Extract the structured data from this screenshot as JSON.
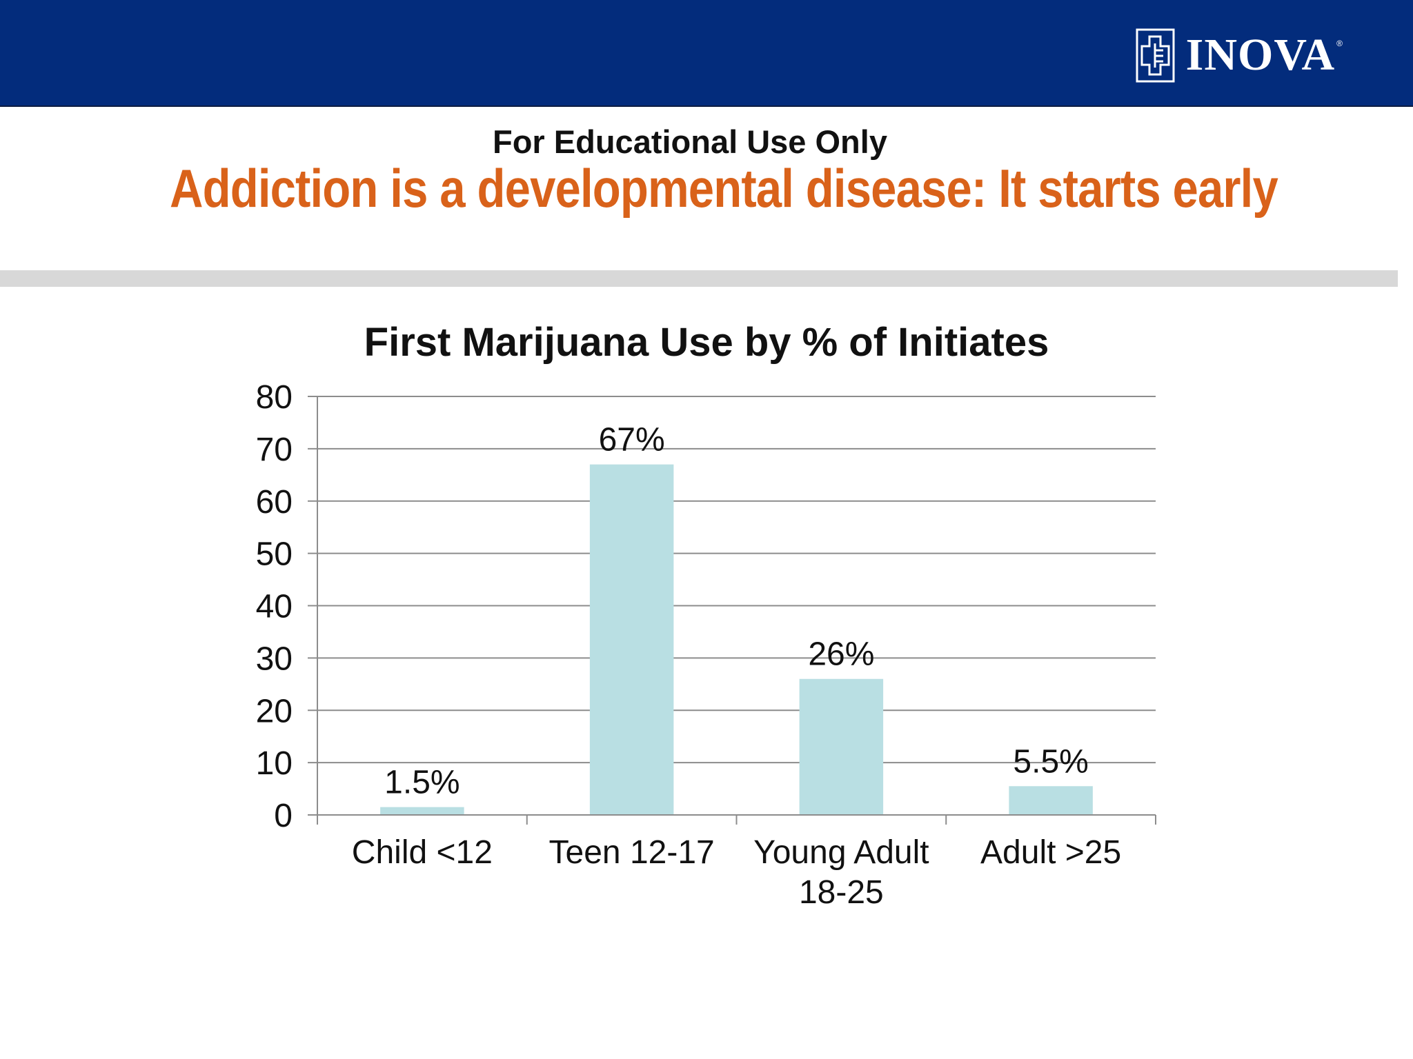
{
  "header": {
    "logo_text": "INOVA",
    "logo_mark": "inova-cross-logo-icon",
    "logo_reg": "®",
    "background_color": "#032c7c"
  },
  "slide": {
    "educational_note": "For Educational Use Only",
    "title": "Addiction is a developmental disease: It starts early",
    "title_color": "#d9621a"
  },
  "chart_data": {
    "type": "bar",
    "title": "First Marijuana Use by % of Initiates",
    "categories": [
      [
        "Child <12"
      ],
      [
        "Teen 12-17"
      ],
      [
        "Young Adult",
        "18-25"
      ],
      [
        "Adult >25"
      ]
    ],
    "values": [
      1.5,
      67,
      26,
      5.5
    ],
    "data_labels": [
      "1.5%",
      "67%",
      "26%",
      "5.5%"
    ],
    "xlabel": "",
    "ylabel": "",
    "ylim": [
      0,
      80
    ],
    "yticks": [
      0,
      10,
      20,
      30,
      40,
      50,
      60,
      70,
      80
    ],
    "grid": true,
    "legend": "none",
    "bar_color": "#b9dfe3"
  }
}
